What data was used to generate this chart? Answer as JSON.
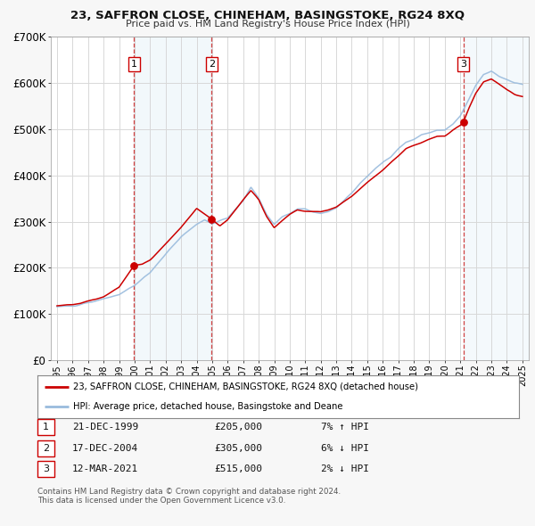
{
  "title": "23, SAFFRON CLOSE, CHINEHAM, BASINGSTOKE, RG24 8XQ",
  "subtitle": "Price paid vs. HM Land Registry's House Price Index (HPI)",
  "ylim": [
    0,
    700000
  ],
  "yticks": [
    0,
    100000,
    200000,
    300000,
    400000,
    500000,
    600000,
    700000
  ],
  "xlim_start": 1994.6,
  "xlim_end": 2025.4,
  "background_color": "#f7f7f7",
  "plot_bg_color": "#ffffff",
  "grid_color": "#d8d8d8",
  "sale_color": "#cc0000",
  "hpi_color": "#99bbdd",
  "sale_label": "23, SAFFRON CLOSE, CHINEHAM, BASINGSTOKE, RG24 8XQ (detached house)",
  "hpi_label": "HPI: Average price, detached house, Basingstoke and Deane",
  "transactions": [
    {
      "num": 1,
      "date": "21-DEC-1999",
      "year": 1999.97,
      "price": 205000,
      "pct": "7%",
      "dir": "↑"
    },
    {
      "num": 2,
      "date": "17-DEC-2004",
      "year": 2004.97,
      "price": 305000,
      "pct": "6%",
      "dir": "↓"
    },
    {
      "num": 3,
      "date": "12-MAR-2021",
      "year": 2021.19,
      "price": 515000,
      "pct": "2%",
      "dir": "↓"
    }
  ],
  "footnote1": "Contains HM Land Registry data © Crown copyright and database right 2024.",
  "footnote2": "This data is licensed under the Open Government Licence v3.0.",
  "hpi_anchors": [
    [
      1995.0,
      115000
    ],
    [
      1996.0,
      118000
    ],
    [
      1997.0,
      125000
    ],
    [
      1998.0,
      132000
    ],
    [
      1999.0,
      143000
    ],
    [
      2000.0,
      162000
    ],
    [
      2001.0,
      190000
    ],
    [
      2002.0,
      230000
    ],
    [
      2003.0,
      268000
    ],
    [
      2004.0,
      295000
    ],
    [
      2004.5,
      305000
    ],
    [
      2005.0,
      295000
    ],
    [
      2006.0,
      308000
    ],
    [
      2007.0,
      345000
    ],
    [
      2007.5,
      375000
    ],
    [
      2008.0,
      350000
    ],
    [
      2008.5,
      315000
    ],
    [
      2009.0,
      295000
    ],
    [
      2009.5,
      310000
    ],
    [
      2010.0,
      318000
    ],
    [
      2010.5,
      328000
    ],
    [
      2011.0,
      328000
    ],
    [
      2011.5,
      320000
    ],
    [
      2012.0,
      318000
    ],
    [
      2012.5,
      322000
    ],
    [
      2013.0,
      330000
    ],
    [
      2013.5,
      345000
    ],
    [
      2014.0,
      362000
    ],
    [
      2014.5,
      382000
    ],
    [
      2015.0,
      398000
    ],
    [
      2015.5,
      415000
    ],
    [
      2016.0,
      428000
    ],
    [
      2016.5,
      440000
    ],
    [
      2017.0,
      458000
    ],
    [
      2017.5,
      472000
    ],
    [
      2018.0,
      478000
    ],
    [
      2018.5,
      488000
    ],
    [
      2019.0,
      492000
    ],
    [
      2019.5,
      498000
    ],
    [
      2020.0,
      498000
    ],
    [
      2020.5,
      510000
    ],
    [
      2021.0,
      528000
    ],
    [
      2021.5,
      562000
    ],
    [
      2022.0,
      595000
    ],
    [
      2022.5,
      618000
    ],
    [
      2023.0,
      625000
    ],
    [
      2023.5,
      615000
    ],
    [
      2024.0,
      608000
    ],
    [
      2024.5,
      600000
    ],
    [
      2025.0,
      598000
    ]
  ],
  "sale_anchors": [
    [
      1995.0,
      118000
    ],
    [
      1996.0,
      120000
    ],
    [
      1997.0,
      128000
    ],
    [
      1998.0,
      138000
    ],
    [
      1999.0,
      158000
    ],
    [
      1999.97,
      205000
    ],
    [
      2000.5,
      208000
    ],
    [
      2001.0,
      218000
    ],
    [
      2002.0,
      252000
    ],
    [
      2003.0,
      288000
    ],
    [
      2004.0,
      328000
    ],
    [
      2004.97,
      305000
    ],
    [
      2005.5,
      292000
    ],
    [
      2006.0,
      305000
    ],
    [
      2007.0,
      348000
    ],
    [
      2007.5,
      368000
    ],
    [
      2008.0,
      348000
    ],
    [
      2008.5,
      312000
    ],
    [
      2009.0,
      288000
    ],
    [
      2009.5,
      302000
    ],
    [
      2010.0,
      315000
    ],
    [
      2010.5,
      325000
    ],
    [
      2011.0,
      322000
    ],
    [
      2012.0,
      320000
    ],
    [
      2013.0,
      332000
    ],
    [
      2014.0,
      355000
    ],
    [
      2015.0,
      385000
    ],
    [
      2016.0,
      412000
    ],
    [
      2017.0,
      442000
    ],
    [
      2017.5,
      458000
    ],
    [
      2018.0,
      465000
    ],
    [
      2019.0,
      478000
    ],
    [
      2019.5,
      485000
    ],
    [
      2020.0,
      485000
    ],
    [
      2020.5,
      498000
    ],
    [
      2021.0,
      508000
    ],
    [
      2021.19,
      515000
    ],
    [
      2021.5,
      542000
    ],
    [
      2022.0,
      578000
    ],
    [
      2022.5,
      602000
    ],
    [
      2023.0,
      608000
    ],
    [
      2023.5,
      598000
    ],
    [
      2024.0,
      585000
    ],
    [
      2024.5,
      575000
    ],
    [
      2025.0,
      570000
    ]
  ]
}
